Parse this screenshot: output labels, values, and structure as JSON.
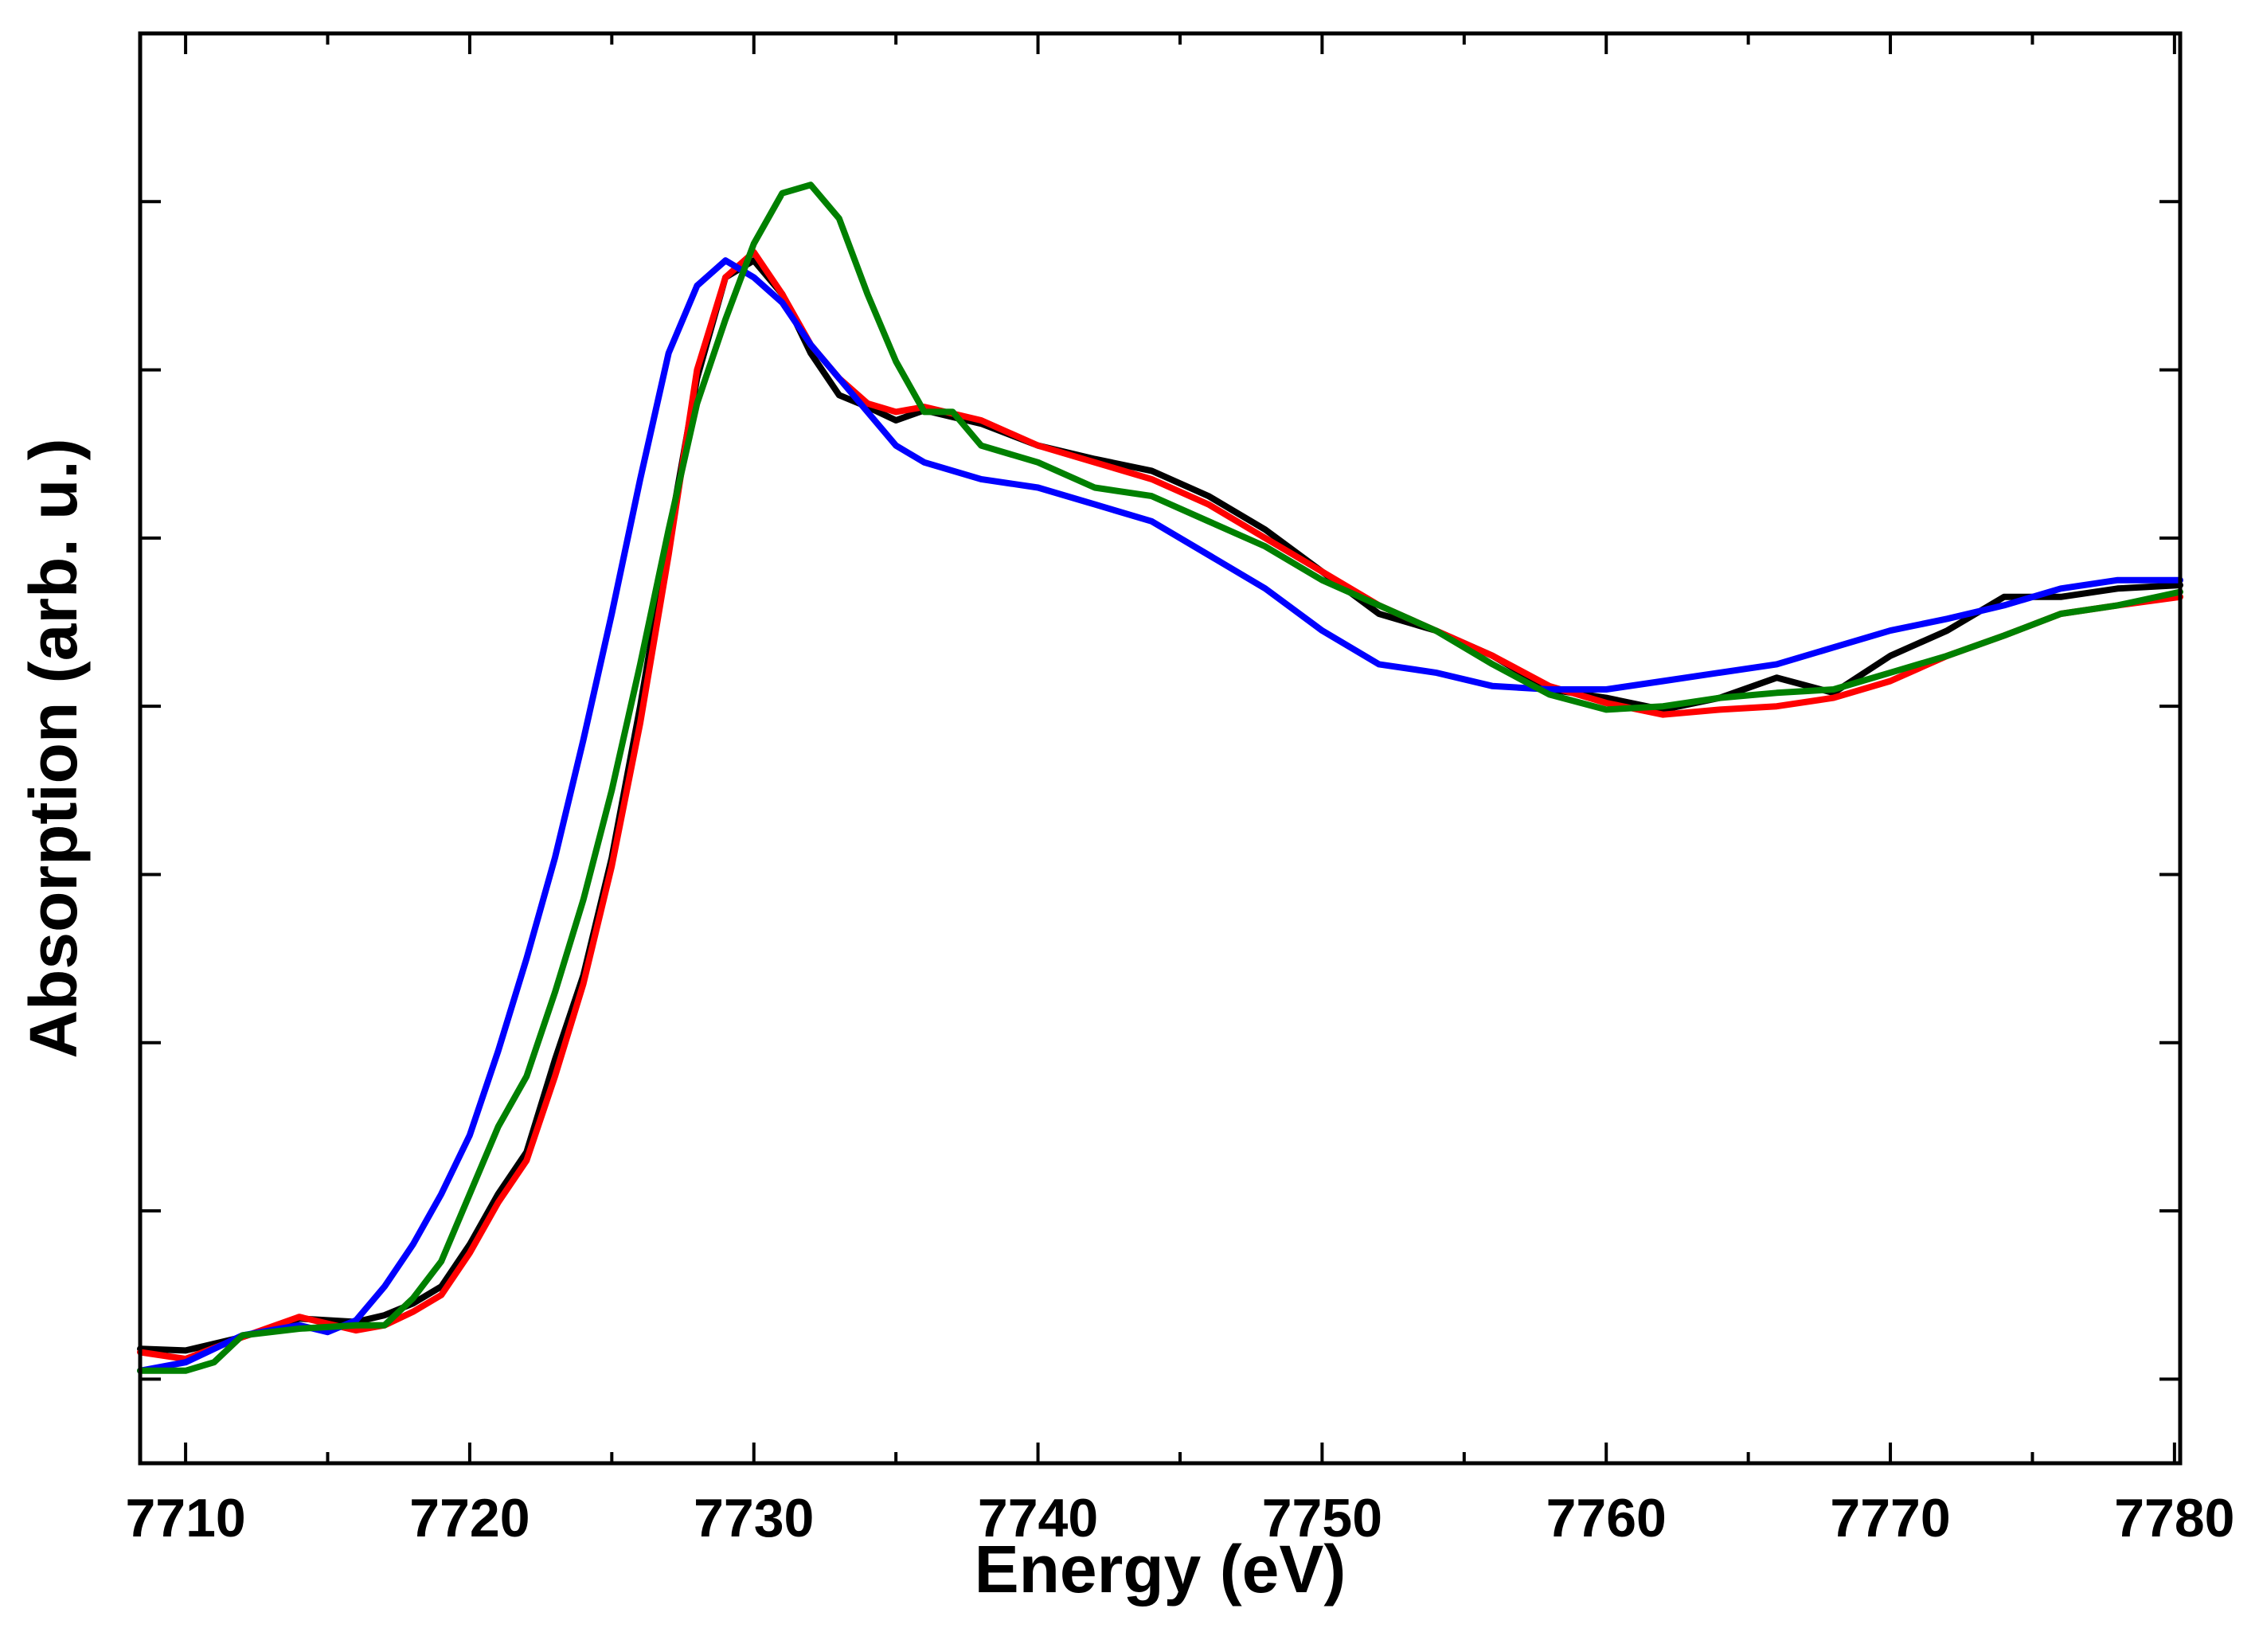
{
  "chart_data": {
    "type": "line",
    "title": "",
    "xlabel": "Energy (eV)",
    "ylabel": "Absorption (arb. u.)",
    "xlim": [
      7708.4,
      7780.2
    ],
    "ylim": [
      0,
      8.5
    ],
    "xticks": [
      7710,
      7720,
      7730,
      7740,
      7750,
      7760,
      7770,
      7780
    ],
    "yticks": [
      0.5,
      1.5,
      2.5,
      3.5,
      4.5,
      5.5,
      6.5,
      7.5
    ],
    "show_ytick_labels": false,
    "grid": false,
    "legend": "none",
    "series": [
      {
        "name": "black",
        "color": "#000000",
        "x": [
          7708.4,
          7710,
          7712,
          7714,
          7716,
          7717,
          7718,
          7719,
          7720,
          7721,
          7722,
          7723,
          7724,
          7725,
          7726,
          7727,
          7728,
          7729,
          7730,
          7731,
          7732,
          7733,
          7734,
          7735,
          7736,
          7737,
          7738,
          7740,
          7742,
          7744,
          7746,
          7748,
          7750,
          7752,
          7754,
          7756,
          7758,
          7760,
          7762,
          7764,
          7766,
          7768,
          7770,
          7772,
          7774,
          7776,
          7778,
          7780.2
        ],
        "y": [
          0.68,
          0.67,
          0.75,
          0.86,
          0.84,
          0.88,
          0.95,
          1.05,
          1.3,
          1.6,
          1.85,
          2.4,
          2.9,
          3.6,
          4.5,
          5.5,
          6.45,
          7.05,
          7.15,
          6.95,
          6.6,
          6.35,
          6.28,
          6.2,
          6.26,
          6.22,
          6.18,
          6.05,
          5.97,
          5.9,
          5.75,
          5.55,
          5.3,
          5.05,
          4.95,
          4.8,
          4.6,
          4.55,
          4.48,
          4.55,
          4.67,
          4.58,
          4.8,
          4.95,
          5.15,
          5.15,
          5.2,
          5.22
        ]
      },
      {
        "name": "red",
        "color": "#ff0000",
        "x": [
          7708.4,
          7710,
          7712,
          7714,
          7716,
          7717,
          7718,
          7719,
          7720,
          7721,
          7722,
          7723,
          7724,
          7725,
          7726,
          7727,
          7728,
          7729,
          7730,
          7731,
          7732,
          7733,
          7734,
          7735,
          7736,
          7738,
          7740,
          7742,
          7744,
          7746,
          7748,
          7750,
          7752,
          7754,
          7756,
          7758,
          7760,
          7762,
          7764,
          7766,
          7768,
          7770,
          7772,
          7774,
          7776,
          7778,
          7780.2
        ],
        "y": [
          0.66,
          0.62,
          0.75,
          0.87,
          0.79,
          0.82,
          0.9,
          1.0,
          1.25,
          1.55,
          1.8,
          2.3,
          2.85,
          3.55,
          4.4,
          5.4,
          6.5,
          7.05,
          7.2,
          6.95,
          6.65,
          6.45,
          6.3,
          6.25,
          6.28,
          6.2,
          6.05,
          5.95,
          5.85,
          5.7,
          5.5,
          5.3,
          5.1,
          4.95,
          4.8,
          4.62,
          4.52,
          4.45,
          4.48,
          4.5,
          4.55,
          4.65,
          4.8,
          4.92,
          5.05,
          5.1,
          5.15
        ]
      },
      {
        "name": "blue",
        "color": "#0000ff",
        "x": [
          7708.4,
          7710,
          7712,
          7714,
          7715,
          7716,
          7717,
          7718,
          7719,
          7720,
          7721,
          7722,
          7723,
          7724,
          7725,
          7726,
          7727,
          7728,
          7729,
          7730,
          7731,
          7732,
          7733,
          7734,
          7735,
          7736,
          7738,
          7740,
          7742,
          7744,
          7746,
          7748,
          7750,
          7752,
          7754,
          7756,
          7758,
          7760,
          7762,
          7764,
          7766,
          7768,
          7770,
          7772,
          7774,
          7776,
          7778,
          7780.2
        ],
        "y": [
          0.55,
          0.6,
          0.76,
          0.82,
          0.78,
          0.85,
          1.05,
          1.3,
          1.6,
          1.95,
          2.45,
          3.0,
          3.6,
          4.3,
          5.05,
          5.85,
          6.6,
          7.0,
          7.15,
          7.05,
          6.9,
          6.65,
          6.45,
          6.25,
          6.05,
          5.95,
          5.85,
          5.8,
          5.7,
          5.6,
          5.4,
          5.2,
          4.95,
          4.75,
          4.7,
          4.62,
          4.6,
          4.6,
          4.65,
          4.7,
          4.75,
          4.85,
          4.95,
          5.02,
          5.1,
          5.2,
          5.25,
          5.25
        ]
      },
      {
        "name": "green",
        "color": "#008000",
        "x": [
          7708.4,
          7710,
          7711,
          7712,
          7714,
          7716,
          7717,
          7718,
          7719,
          7720,
          7721,
          7722,
          7723,
          7724,
          7725,
          7726,
          7727,
          7728,
          7729,
          7730,
          7731,
          7732,
          7733,
          7734,
          7735,
          7736,
          7737,
          7738,
          7740,
          7742,
          7744,
          7746,
          7748,
          7750,
          7752,
          7754,
          7756,
          7758,
          7760,
          7762,
          7764,
          7766,
          7768,
          7770,
          7772,
          7774,
          7776,
          7778,
          7780.2
        ],
        "y": [
          0.55,
          0.55,
          0.6,
          0.76,
          0.8,
          0.82,
          0.82,
          0.98,
          1.2,
          1.6,
          2.0,
          2.3,
          2.8,
          3.35,
          4.0,
          4.75,
          5.55,
          6.3,
          6.8,
          7.25,
          7.55,
          7.6,
          7.4,
          6.95,
          6.55,
          6.25,
          6.25,
          6.05,
          5.95,
          5.8,
          5.75,
          5.6,
          5.45,
          5.25,
          5.1,
          4.95,
          4.75,
          4.57,
          4.48,
          4.5,
          4.55,
          4.58,
          4.6,
          4.7,
          4.8,
          4.92,
          5.05,
          5.1,
          5.18
        ]
      }
    ]
  }
}
